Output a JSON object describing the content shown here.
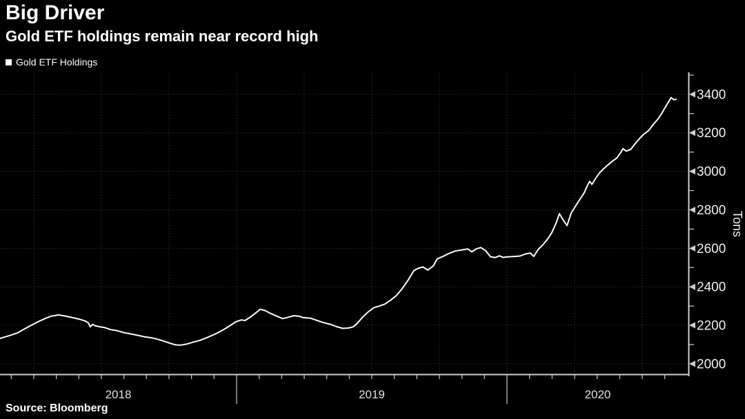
{
  "header": {
    "title": "Big Driver",
    "subtitle": "Gold ETF holdings remain near record high"
  },
  "legend": {
    "items": [
      {
        "label": "Gold ETF Holdings",
        "swatch_color": "#ffffff"
      }
    ]
  },
  "source": {
    "text": "Source:  Bloomberg"
  },
  "colors": {
    "background": "#000000",
    "line": "#ffffff",
    "grid": "#3f3f3f",
    "axis": "#d0d0d0",
    "tick_label": "#f2f2f2",
    "year_label": "#e0e0e0",
    "separator": "#a0a0a0"
  },
  "chart_data": {
    "type": "line",
    "title": "Big Driver",
    "subtitle": "Gold ETF holdings remain near record high",
    "xlabel": "",
    "ylabel": "Tons",
    "legend_position": "top-left",
    "grid": "dotted",
    "x_axis": {
      "unit": "decimal_year",
      "range": [
        2018.125,
        2020.671
      ],
      "year_labels": [
        {
          "label": "2018",
          "center": 2018.5625
        },
        {
          "label": "2019",
          "center": 2019.5
        },
        {
          "label": "2020",
          "center": 2020.3355
        }
      ],
      "year_separators": [
        2019.0,
        2020.0
      ],
      "grid_lines": [
        2018.25,
        2018.5,
        2018.75,
        2019.0,
        2019.25,
        2019.5,
        2019.75,
        2020.0,
        2020.25,
        2020.5
      ],
      "minor_tick_step_months": 1
    },
    "y_axis": {
      "title": "Tons",
      "side": "right",
      "range": [
        1946,
        3507
      ],
      "major_ticks": [
        2000,
        2200,
        2400,
        2600,
        2800,
        3000,
        3200,
        3400
      ],
      "minor_tick_step": 100
    },
    "series": [
      {
        "name": "Gold ETF Holdings",
        "color": "#ffffff",
        "points": [
          [
            2018.125,
            2132
          ],
          [
            2018.156,
            2145
          ],
          [
            2018.189,
            2160
          ],
          [
            2018.214,
            2180
          ],
          [
            2018.24,
            2200
          ],
          [
            2018.265,
            2218
          ],
          [
            2018.291,
            2235
          ],
          [
            2018.316,
            2248
          ],
          [
            2018.342,
            2254
          ],
          [
            2018.367,
            2248
          ],
          [
            2018.393,
            2240
          ],
          [
            2018.418,
            2232
          ],
          [
            2018.441,
            2222
          ],
          [
            2018.452,
            2212
          ],
          [
            2018.459,
            2192
          ],
          [
            2018.467,
            2205
          ],
          [
            2018.477,
            2198
          ],
          [
            2018.495,
            2192
          ],
          [
            2018.513,
            2188
          ],
          [
            2018.533,
            2178
          ],
          [
            2018.559,
            2172
          ],
          [
            2018.584,
            2162
          ],
          [
            2018.61,
            2155
          ],
          [
            2018.635,
            2148
          ],
          [
            2018.661,
            2140
          ],
          [
            2018.686,
            2135
          ],
          [
            2018.712,
            2126
          ],
          [
            2018.737,
            2115
          ],
          [
            2018.758,
            2105
          ],
          [
            2018.776,
            2098
          ],
          [
            2018.793,
            2097
          ],
          [
            2018.814,
            2102
          ],
          [
            2018.839,
            2112
          ],
          [
            2018.865,
            2122
          ],
          [
            2018.89,
            2136
          ],
          [
            2018.916,
            2152
          ],
          [
            2018.936,
            2165
          ],
          [
            2018.957,
            2182
          ],
          [
            2018.977,
            2200
          ],
          [
            2018.997,
            2218
          ],
          [
            2019.018,
            2228
          ],
          [
            2019.031,
            2225
          ],
          [
            2019.048,
            2240
          ],
          [
            2019.069,
            2262
          ],
          [
            2019.087,
            2283
          ],
          [
            2019.105,
            2277
          ],
          [
            2019.125,
            2262
          ],
          [
            2019.151,
            2246
          ],
          [
            2019.171,
            2235
          ],
          [
            2019.191,
            2242
          ],
          [
            2019.212,
            2250
          ],
          [
            2019.232,
            2247
          ],
          [
            2019.247,
            2240
          ],
          [
            2019.273,
            2237
          ],
          [
            2019.298,
            2225
          ],
          [
            2019.324,
            2213
          ],
          [
            2019.349,
            2204
          ],
          [
            2019.37,
            2193
          ],
          [
            2019.393,
            2184
          ],
          [
            2019.413,
            2186
          ],
          [
            2019.431,
            2192
          ],
          [
            2019.446,
            2210
          ],
          [
            2019.467,
            2244
          ],
          [
            2019.487,
            2270
          ],
          [
            2019.508,
            2292
          ],
          [
            2019.528,
            2300
          ],
          [
            2019.548,
            2310
          ],
          [
            2019.569,
            2330
          ],
          [
            2019.589,
            2352
          ],
          [
            2019.612,
            2390
          ],
          [
            2019.633,
            2432
          ],
          [
            2019.656,
            2485
          ],
          [
            2019.673,
            2497
          ],
          [
            2019.689,
            2503
          ],
          [
            2019.707,
            2487
          ],
          [
            2019.727,
            2508
          ],
          [
            2019.742,
            2545
          ],
          [
            2019.763,
            2558
          ],
          [
            2019.783,
            2572
          ],
          [
            2019.809,
            2586
          ],
          [
            2019.834,
            2592
          ],
          [
            2019.855,
            2597
          ],
          [
            2019.87,
            2582
          ],
          [
            2019.888,
            2598
          ],
          [
            2019.903,
            2604
          ],
          [
            2019.921,
            2588
          ],
          [
            2019.939,
            2556
          ],
          [
            2019.957,
            2552
          ],
          [
            2019.972,
            2561
          ],
          [
            2019.985,
            2553
          ],
          [
            2020.005,
            2556
          ],
          [
            2020.028,
            2558
          ],
          [
            2020.048,
            2560
          ],
          [
            2020.069,
            2571
          ],
          [
            2020.087,
            2575
          ],
          [
            2020.099,
            2558
          ],
          [
            2020.115,
            2594
          ],
          [
            2020.133,
            2618
          ],
          [
            2020.151,
            2650
          ],
          [
            2020.166,
            2682
          ],
          [
            2020.181,
            2729
          ],
          [
            2020.194,
            2780
          ],
          [
            2020.207,
            2749
          ],
          [
            2020.222,
            2718
          ],
          [
            2020.237,
            2782
          ],
          [
            2020.253,
            2818
          ],
          [
            2020.27,
            2855
          ],
          [
            2020.286,
            2890
          ],
          [
            2020.298,
            2928
          ],
          [
            2020.306,
            2948
          ],
          [
            2020.314,
            2932
          ],
          [
            2020.327,
            2962
          ],
          [
            2020.342,
            2991
          ],
          [
            2020.357,
            3013
          ],
          [
            2020.372,
            3032
          ],
          [
            2020.39,
            3053
          ],
          [
            2020.406,
            3069
          ],
          [
            2020.421,
            3098
          ],
          [
            2020.429,
            3118
          ],
          [
            2020.441,
            3105
          ],
          [
            2020.457,
            3113
          ],
          [
            2020.472,
            3140
          ],
          [
            2020.49,
            3170
          ],
          [
            2020.505,
            3192
          ],
          [
            2020.523,
            3211
          ],
          [
            2020.541,
            3243
          ],
          [
            2020.559,
            3273
          ],
          [
            2020.574,
            3305
          ],
          [
            2020.587,
            3337
          ],
          [
            2020.6,
            3367
          ],
          [
            2020.607,
            3383
          ],
          [
            2020.617,
            3372
          ],
          [
            2020.625,
            3374
          ]
        ]
      }
    ]
  }
}
